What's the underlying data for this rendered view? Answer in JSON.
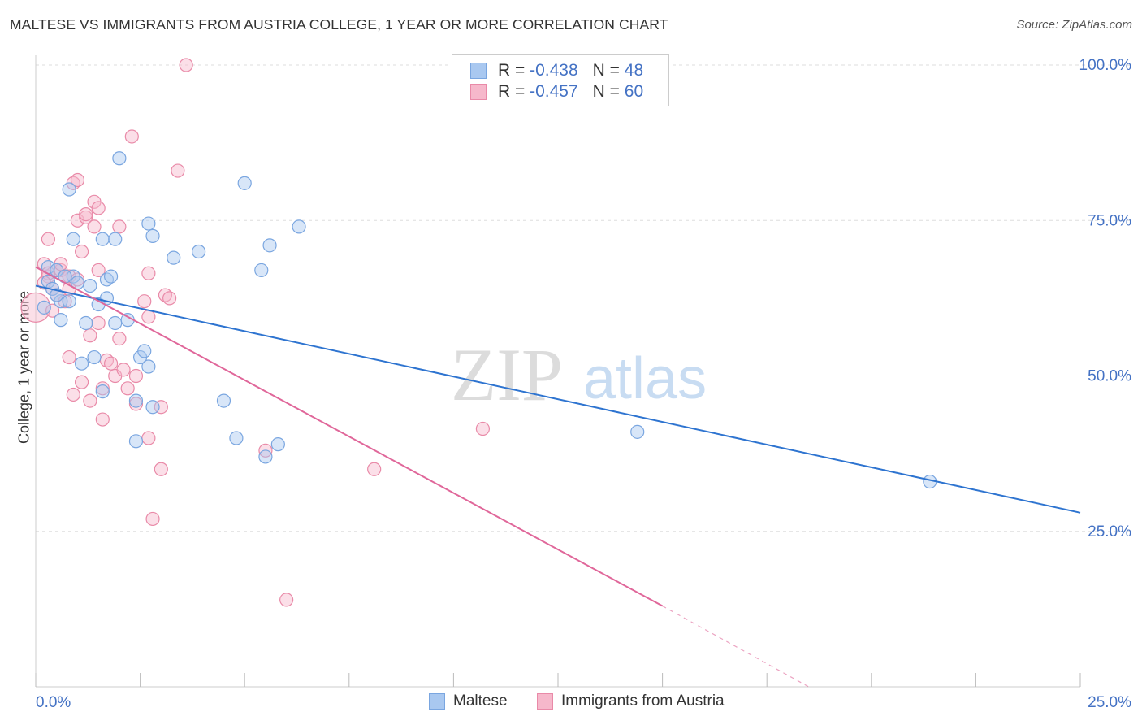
{
  "title": "MALTESE VS IMMIGRANTS FROM AUSTRIA COLLEGE, 1 YEAR OR MORE CORRELATION CHART",
  "source": "Source: ZipAtlas.com",
  "watermark": {
    "zip": "ZIP",
    "atlas": "atlas"
  },
  "colors": {
    "blue_fill": "#a9c8f0",
    "blue_stroke": "#7aa6e0",
    "blue_line": "#2e74d0",
    "pink_fill": "#f6b8cb",
    "pink_stroke": "#e98aa8",
    "pink_line": "#e0679a",
    "value_text": "#4472c4",
    "grid": "#dddddd"
  },
  "legend": {
    "series": [
      {
        "name": "Maltese",
        "r_label": "R =",
        "r_value": "-0.438",
        "n_label": "N =",
        "n_value": "48"
      },
      {
        "name": "Immigrants from Austria",
        "r_label": "R =",
        "r_value": "-0.457",
        "n_label": "N =",
        "n_value": "60"
      }
    ]
  },
  "chart_data": {
    "type": "scatter",
    "title": "MALTESE VS IMMIGRANTS FROM AUSTRIA COLLEGE, 1 YEAR OR MORE CORRELATION CHART",
    "xlabel": "",
    "ylabel": "College, 1 year or more",
    "xlim": [
      0,
      25
    ],
    "ylim": [
      0,
      100
    ],
    "x_tick_labels": [
      "0.0%",
      "25.0%"
    ],
    "y_ticks": [
      25,
      50,
      75,
      100
    ],
    "y_tick_labels": [
      "25.0%",
      "50.0%",
      "75.0%",
      "100.0%"
    ],
    "grid": true,
    "legend_position": "top-center",
    "series": [
      {
        "name": "Maltese",
        "r": -0.438,
        "n": 48,
        "trend": {
          "x0": 0.0,
          "y0": 64.5,
          "x1": 25.0,
          "y1": 28.0
        },
        "points": [
          [
            0.3,
            67.5
          ],
          [
            0.3,
            65.2
          ],
          [
            0.5,
            67.0
          ],
          [
            0.6,
            62.0
          ],
          [
            0.6,
            59.0
          ],
          [
            0.8,
            62.0
          ],
          [
            0.8,
            80.0
          ],
          [
            0.9,
            72.0
          ],
          [
            0.9,
            66.0
          ],
          [
            1.0,
            65.0
          ],
          [
            1.1,
            52.0
          ],
          [
            1.2,
            58.5
          ],
          [
            1.4,
            53.0
          ],
          [
            1.5,
            61.5
          ],
          [
            1.6,
            47.5
          ],
          [
            1.6,
            72.0
          ],
          [
            1.7,
            62.5
          ],
          [
            1.7,
            65.5
          ],
          [
            1.8,
            66.0
          ],
          [
            1.9,
            72.0
          ],
          [
            1.9,
            58.5
          ],
          [
            2.0,
            85.0
          ],
          [
            2.2,
            59.0
          ],
          [
            2.4,
            39.5
          ],
          [
            2.4,
            46.0
          ],
          [
            2.5,
            53.0
          ],
          [
            2.6,
            54.0
          ],
          [
            2.7,
            51.5
          ],
          [
            2.7,
            74.5
          ],
          [
            2.8,
            72.5
          ],
          [
            2.8,
            45.0
          ],
          [
            3.3,
            69.0
          ],
          [
            3.9,
            70.0
          ],
          [
            4.5,
            46.0
          ],
          [
            4.8,
            40.0
          ],
          [
            5.0,
            81.0
          ],
          [
            5.4,
            67.0
          ],
          [
            5.5,
            37.0
          ],
          [
            5.6,
            71.0
          ],
          [
            5.8,
            39.0
          ],
          [
            6.3,
            74.0
          ],
          [
            14.4,
            41.0
          ],
          [
            21.4,
            33.0
          ],
          [
            0.2,
            61.0
          ],
          [
            0.4,
            64.0
          ],
          [
            0.7,
            66.0
          ],
          [
            1.3,
            64.5
          ],
          [
            0.5,
            63.0
          ]
        ]
      },
      {
        "name": "Immigrants from Austria",
        "r": -0.457,
        "n": 60,
        "trend": {
          "x0": 0.0,
          "y0": 67.5,
          "x1": 15.0,
          "y1": 13.0,
          "dash_x1": 18.5,
          "dash_y1": 0.0
        },
        "points": [
          [
            0.0,
            61.0
          ],
          [
            0.2,
            68.0
          ],
          [
            0.3,
            72.0
          ],
          [
            0.3,
            66.0
          ],
          [
            0.4,
            64.0
          ],
          [
            0.5,
            67.0
          ],
          [
            0.5,
            63.0
          ],
          [
            0.6,
            67.0
          ],
          [
            0.7,
            66.0
          ],
          [
            0.7,
            62.0
          ],
          [
            0.8,
            64.0
          ],
          [
            0.8,
            66.0
          ],
          [
            0.8,
            53.0
          ],
          [
            0.9,
            47.0
          ],
          [
            0.9,
            81.0
          ],
          [
            1.0,
            81.5
          ],
          [
            1.0,
            75.0
          ],
          [
            1.1,
            70.0
          ],
          [
            1.2,
            75.5
          ],
          [
            1.2,
            76.0
          ],
          [
            1.3,
            56.5
          ],
          [
            1.3,
            46.0
          ],
          [
            1.4,
            74.0
          ],
          [
            1.4,
            78.0
          ],
          [
            1.5,
            77.0
          ],
          [
            1.5,
            67.0
          ],
          [
            1.6,
            48.0
          ],
          [
            1.6,
            43.0
          ],
          [
            1.7,
            52.5
          ],
          [
            1.8,
            52.0
          ],
          [
            1.9,
            50.0
          ],
          [
            2.0,
            56.0
          ],
          [
            2.0,
            74.0
          ],
          [
            2.1,
            51.0
          ],
          [
            2.2,
            48.0
          ],
          [
            2.3,
            88.5
          ],
          [
            2.4,
            50.0
          ],
          [
            2.6,
            62.0
          ],
          [
            2.7,
            59.5
          ],
          [
            2.7,
            66.5
          ],
          [
            2.7,
            40.0
          ],
          [
            2.8,
            27.0
          ],
          [
            3.0,
            45.0
          ],
          [
            3.0,
            35.0
          ],
          [
            3.1,
            63.0
          ],
          [
            3.2,
            62.5
          ],
          [
            3.4,
            83.0
          ],
          [
            3.6,
            100.0
          ],
          [
            5.5,
            38.0
          ],
          [
            6.0,
            14.0
          ],
          [
            8.1,
            35.0
          ],
          [
            10.7,
            41.5
          ],
          [
            0.3,
            66.5
          ],
          [
            0.6,
            68.0
          ],
          [
            1.0,
            65.5
          ],
          [
            0.4,
            60.5
          ],
          [
            1.1,
            49.0
          ],
          [
            1.5,
            58.5
          ],
          [
            2.4,
            45.5
          ],
          [
            0.2,
            65.0
          ]
        ]
      }
    ]
  }
}
